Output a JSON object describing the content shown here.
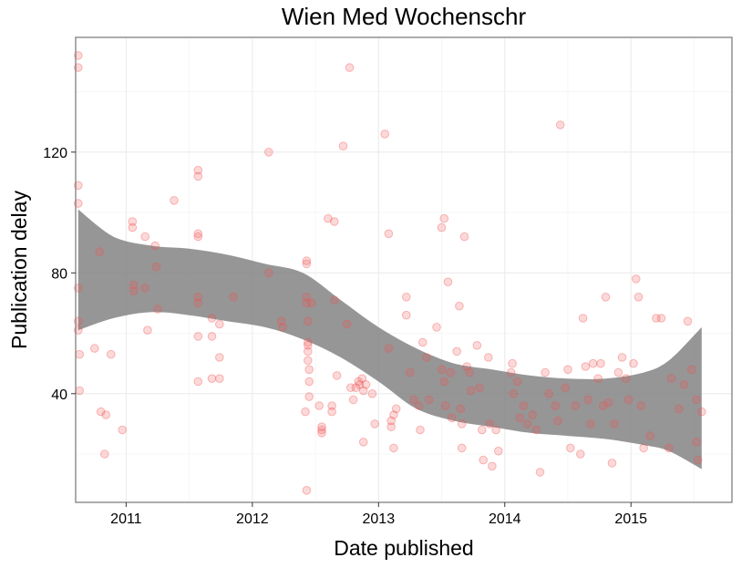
{
  "chart_data": {
    "type": "scatter",
    "title": "Wien Med Wochenschr",
    "xlabel": "Date published",
    "ylabel": "Publication delay",
    "xlim": [
      2010.6,
      2015.8
    ],
    "ylim": [
      4,
      158
    ],
    "x_ticks": [
      2011,
      2012,
      2013,
      2014,
      2015
    ],
    "x_tick_labels": [
      "2011",
      "2012",
      "2013",
      "2014",
      "2015"
    ],
    "y_ticks": [
      40,
      80,
      120
    ],
    "y_tick_labels": [
      "40",
      "80",
      "120"
    ],
    "grid": true,
    "point_color": "#f15050",
    "ribbon_color": "#7f7f7f",
    "points": [
      [
        2010.62,
        152
      ],
      [
        2010.62,
        148
      ],
      [
        2010.62,
        109
      ],
      [
        2010.62,
        103
      ],
      [
        2010.62,
        75
      ],
      [
        2010.62,
        64
      ],
      [
        2010.62,
        61
      ],
      [
        2010.63,
        53
      ],
      [
        2010.63,
        41
      ],
      [
        2010.75,
        55
      ],
      [
        2010.79,
        87
      ],
      [
        2010.8,
        34
      ],
      [
        2010.84,
        33
      ],
      [
        2010.83,
        20
      ],
      [
        2010.88,
        53
      ],
      [
        2010.97,
        28
      ],
      [
        2011.05,
        97
      ],
      [
        2011.05,
        95
      ],
      [
        2011.06,
        76
      ],
      [
        2011.06,
        74
      ],
      [
        2011.15,
        92
      ],
      [
        2011.15,
        75
      ],
      [
        2011.17,
        61
      ],
      [
        2011.23,
        89
      ],
      [
        2011.24,
        82
      ],
      [
        2011.25,
        68
      ],
      [
        2011.38,
        104
      ],
      [
        2011.57,
        114
      ],
      [
        2011.57,
        112
      ],
      [
        2011.57,
        93
      ],
      [
        2011.57,
        92
      ],
      [
        2011.57,
        72
      ],
      [
        2011.57,
        70
      ],
      [
        2011.57,
        59
      ],
      [
        2011.57,
        44
      ],
      [
        2011.68,
        65
      ],
      [
        2011.68,
        59
      ],
      [
        2011.68,
        45
      ],
      [
        2011.74,
        63
      ],
      [
        2011.74,
        52
      ],
      [
        2011.74,
        45
      ],
      [
        2011.85,
        72
      ],
      [
        2012.13,
        120
      ],
      [
        2012.13,
        80
      ],
      [
        2012.23,
        64
      ],
      [
        2012.24,
        62
      ],
      [
        2012.42,
        34
      ],
      [
        2012.43,
        84
      ],
      [
        2012.43,
        83
      ],
      [
        2012.43,
        72
      ],
      [
        2012.43,
        70
      ],
      [
        2012.44,
        64
      ],
      [
        2012.44,
        57
      ],
      [
        2012.44,
        56
      ],
      [
        2012.44,
        54
      ],
      [
        2012.44,
        51
      ],
      [
        2012.45,
        48
      ],
      [
        2012.45,
        44
      ],
      [
        2012.45,
        39
      ],
      [
        2012.43,
        8
      ],
      [
        2012.47,
        70
      ],
      [
        2012.53,
        36
      ],
      [
        2012.55,
        29
      ],
      [
        2012.55,
        28
      ],
      [
        2012.55,
        27
      ],
      [
        2012.6,
        98
      ],
      [
        2012.63,
        36
      ],
      [
        2012.63,
        34
      ],
      [
        2012.65,
        97
      ],
      [
        2012.65,
        71
      ],
      [
        2012.67,
        46
      ],
      [
        2012.72,
        122
      ],
      [
        2012.75,
        63
      ],
      [
        2012.77,
        148
      ],
      [
        2012.78,
        42
      ],
      [
        2012.8,
        38
      ],
      [
        2012.82,
        42
      ],
      [
        2012.84,
        44
      ],
      [
        2012.85,
        43
      ],
      [
        2012.87,
        45
      ],
      [
        2012.88,
        41
      ],
      [
        2012.88,
        24
      ],
      [
        2012.9,
        43
      ],
      [
        2012.95,
        40
      ],
      [
        2012.97,
        30
      ],
      [
        2013.05,
        126
      ],
      [
        2013.08,
        93
      ],
      [
        2013.08,
        55
      ],
      [
        2013.1,
        31
      ],
      [
        2013.1,
        29
      ],
      [
        2013.12,
        33
      ],
      [
        2013.12,
        22
      ],
      [
        2013.14,
        35
      ],
      [
        2013.22,
        72
      ],
      [
        2013.22,
        66
      ],
      [
        2013.25,
        47
      ],
      [
        2013.28,
        38
      ],
      [
        2013.32,
        36
      ],
      [
        2013.33,
        28
      ],
      [
        2013.35,
        57
      ],
      [
        2013.38,
        52
      ],
      [
        2013.4,
        38
      ],
      [
        2013.46,
        62
      ],
      [
        2013.5,
        48
      ],
      [
        2013.5,
        95
      ],
      [
        2013.52,
        98
      ],
      [
        2013.52,
        44
      ],
      [
        2013.53,
        36
      ],
      [
        2013.55,
        77
      ],
      [
        2013.57,
        47
      ],
      [
        2013.58,
        32
      ],
      [
        2013.62,
        54
      ],
      [
        2013.64,
        69
      ],
      [
        2013.65,
        35
      ],
      [
        2013.66,
        30
      ],
      [
        2013.66,
        22
      ],
      [
        2013.68,
        92
      ],
      [
        2013.7,
        49
      ],
      [
        2013.72,
        47
      ],
      [
        2013.73,
        41
      ],
      [
        2013.78,
        56
      ],
      [
        2013.8,
        42
      ],
      [
        2013.82,
        28
      ],
      [
        2013.83,
        18
      ],
      [
        2013.87,
        52
      ],
      [
        2013.88,
        30
      ],
      [
        2013.9,
        16
      ],
      [
        2013.93,
        28
      ],
      [
        2013.95,
        21
      ],
      [
        2014.05,
        47
      ],
      [
        2014.06,
        50
      ],
      [
        2014.07,
        40
      ],
      [
        2014.1,
        44
      ],
      [
        2014.12,
        32
      ],
      [
        2014.15,
        36
      ],
      [
        2014.18,
        30
      ],
      [
        2014.22,
        33
      ],
      [
        2014.25,
        28
      ],
      [
        2014.28,
        14
      ],
      [
        2014.32,
        47
      ],
      [
        2014.35,
        40
      ],
      [
        2014.4,
        36
      ],
      [
        2014.42,
        31
      ],
      [
        2014.44,
        129
      ],
      [
        2014.48,
        42
      ],
      [
        2014.5,
        48
      ],
      [
        2014.52,
        22
      ],
      [
        2014.56,
        36
      ],
      [
        2014.6,
        20
      ],
      [
        2014.62,
        65
      ],
      [
        2014.64,
        49
      ],
      [
        2014.66,
        38
      ],
      [
        2014.68,
        30
      ],
      [
        2014.7,
        50
      ],
      [
        2014.74,
        45
      ],
      [
        2014.76,
        50
      ],
      [
        2014.78,
        36
      ],
      [
        2014.8,
        72
      ],
      [
        2014.82,
        37
      ],
      [
        2014.85,
        17
      ],
      [
        2014.87,
        30
      ],
      [
        2014.9,
        47
      ],
      [
        2014.93,
        52
      ],
      [
        2014.96,
        45
      ],
      [
        2014.98,
        38
      ],
      [
        2015.02,
        50
      ],
      [
        2015.04,
        78
      ],
      [
        2015.06,
        72
      ],
      [
        2015.08,
        36
      ],
      [
        2015.1,
        22
      ],
      [
        2015.15,
        26
      ],
      [
        2015.2,
        65
      ],
      [
        2015.24,
        65
      ],
      [
        2015.3,
        22
      ],
      [
        2015.32,
        45
      ],
      [
        2015.38,
        35
      ],
      [
        2015.42,
        43
      ],
      [
        2015.45,
        64
      ],
      [
        2015.48,
        48
      ],
      [
        2015.52,
        38
      ],
      [
        2015.52,
        24
      ],
      [
        2015.53,
        18
      ],
      [
        2015.56,
        34
      ]
    ],
    "smooth_band": {
      "x": [
        2010.62,
        2010.9,
        2011.2,
        2011.5,
        2011.8,
        2012.1,
        2012.4,
        2012.7,
        2013.0,
        2013.3,
        2013.6,
        2013.9,
        2014.2,
        2014.5,
        2014.8,
        2015.1,
        2015.3,
        2015.56
      ],
      "upper": [
        101,
        92,
        89,
        88,
        86,
        83,
        80,
        71,
        62,
        55,
        50,
        48,
        46,
        45,
        45,
        47,
        51,
        62
      ],
      "lower": [
        61,
        65,
        67,
        66,
        64,
        62,
        58,
        52,
        44,
        35,
        31,
        29,
        27,
        26,
        25,
        23,
        21,
        15
      ]
    }
  }
}
